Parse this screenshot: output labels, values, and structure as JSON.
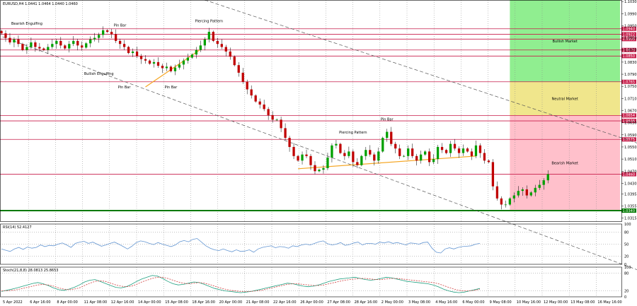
{
  "colors": {
    "up": "#00a000",
    "down": "#c00000",
    "wick": "#000000",
    "hline": "#c81e4b",
    "support": "#007a00",
    "trend": "#555555",
    "orange": "#f5a623",
    "rsi": "#6496d2",
    "stoch_main": "#20a080",
    "stoch_signal": "#d04040",
    "bull": "#90ee90",
    "neutral": "#f0e68c",
    "bear": "#ffc0cb"
  },
  "main_panel": {
    "info": "EURUSD,H4  1.0441 1.0464 1.0440 1.0460",
    "ylim": [
      1.0305,
      1.1035
    ],
    "yticks": [
      "1.1030",
      "1.0990",
      "1.0950",
      "1.0910",
      "1.0870",
      "1.0830",
      "1.0790",
      "1.0750",
      "1.0710",
      "1.0670",
      "1.0630",
      "1.0590",
      "1.0550",
      "1.0510",
      "1.0470",
      "1.0430",
      "1.0395",
      "1.0355",
      "1.0315"
    ],
    "hlines": [
      {
        "price": 1.094,
        "label": "1.0940"
      },
      {
        "price": 1.0922,
        "label": "1.0922"
      },
      {
        "price": 1.0906,
        "label": "1.0906"
      },
      {
        "price": 1.087,
        "label": "1.0870"
      },
      {
        "price": 1.085,
        "label": "1.0850"
      },
      {
        "price": 1.0765,
        "label": "1.0765"
      },
      {
        "price": 1.0654,
        "label": "1.0654"
      },
      {
        "price": 1.0636,
        "label": "1.0636"
      },
      {
        "price": 1.0575,
        "label": "1.0575"
      },
      {
        "price": 1.046,
        "label": "1.0460"
      },
      {
        "price": 1.034,
        "label": "1.0340",
        "support": true
      }
    ],
    "zones": [
      {
        "name": "Bullish Market",
        "from": 1.0765,
        "to": 1.1035,
        "color": "#90ee90"
      },
      {
        "name": "Neutral Market",
        "from": 1.0654,
        "to": 1.0765,
        "color": "#f0e68c"
      },
      {
        "name": "Bearish Market",
        "from": 1.034,
        "to": 1.0654,
        "color": "#ffc0cb"
      }
    ],
    "annotations": [
      {
        "text": "Bearish Engulfing",
        "x": 6,
        "y": 1.0953
      },
      {
        "text": "Pin Bar",
        "x": 28,
        "y": 1.0948
      },
      {
        "text": "Piercing Pattern",
        "x": 49,
        "y": 1.0962
      },
      {
        "text": "Bullish Engulfing",
        "x": 23,
        "y": 1.0788
      },
      {
        "text": "Pin Bar",
        "x": 29,
        "y": 1.0744
      },
      {
        "text": "Pin Bar",
        "x": 40,
        "y": 1.0744
      },
      {
        "text": "Piercing Pattern",
        "x": 83,
        "y": 1.0594
      },
      {
        "text": "Pin Bar",
        "x": 91,
        "y": 1.0637
      }
    ],
    "zone_col": [
      120,
      146
    ]
  },
  "chart_data": [
    {
      "type": "candlestick",
      "symbol": "EURUSD",
      "timeframe": "H4",
      "ohlc_last": {
        "open": 1.0441,
        "high": 1.0464,
        "low": 1.044,
        "close": 1.046
      },
      "x_labels": [
        "5 Apr 2022",
        "6 Apr 16:00",
        "8 Apr 00:00",
        "11 Apr 08:00",
        "12 Apr 16:00",
        "14 Apr 00:00",
        "15 Apr 08:00",
        "18 Apr 16:00",
        "20 Apr 00:00",
        "21 Apr 08:00",
        "22 Apr 16:00",
        "26 Apr 00:00",
        "27 Apr 08:00",
        "28 Apr 16:00",
        "2 May 00:00",
        "3 May 08:00",
        "4 May 16:00",
        "6 May 00:00",
        "9 May 08:00",
        "10 May 16:00",
        "12 May 00:00",
        "13 May 08:00",
        "16 May 16:00"
      ],
      "close": [
        1.0925,
        1.091,
        1.0895,
        1.0905,
        1.089,
        1.087,
        1.088,
        1.0895,
        1.088,
        1.0875,
        1.087,
        1.088,
        1.089,
        1.09,
        1.0885,
        1.0875,
        1.089,
        1.09,
        1.0885,
        1.0878,
        1.0892,
        1.0905,
        1.091,
        1.092,
        1.0935,
        1.093,
        1.0922,
        1.09,
        1.089,
        1.088,
        1.086,
        1.0865,
        1.085,
        1.084,
        1.0835,
        1.0825,
        1.083,
        1.0818,
        1.081,
        1.0815,
        1.08,
        1.0812,
        1.0822,
        1.0835,
        1.0845,
        1.0855,
        1.087,
        1.0885,
        1.0905,
        1.093,
        1.09,
        1.089,
        1.088,
        1.0865,
        1.0848,
        1.082,
        1.0795,
        1.0765,
        1.074,
        1.072,
        1.07,
        1.069,
        1.0675,
        1.0655,
        1.064,
        1.064,
        1.0612,
        1.058,
        1.055,
        1.052,
        1.0505,
        1.0525,
        1.052,
        1.049,
        1.047,
        1.0475,
        1.048,
        1.0515,
        1.0555,
        1.056,
        1.053,
        1.052,
        1.0535,
        1.05,
        1.049,
        1.052,
        1.054,
        1.0525,
        1.0505,
        1.0535,
        1.058,
        1.06,
        1.056,
        1.0545,
        1.052,
        1.052,
        1.0545,
        1.052,
        1.0505,
        1.0525,
        1.0535,
        1.05,
        1.051,
        1.055,
        1.054,
        1.053,
        1.056,
        1.0545,
        1.053,
        1.0545,
        1.0535,
        1.052,
        1.0555,
        1.053,
        1.0505,
        1.05,
        1.042,
        1.038,
        1.036,
        1.036,
        1.038,
        1.039,
        1.0405,
        1.041,
        1.039,
        1.04,
        1.0415,
        1.0425,
        1.044,
        1.046
      ]
    },
    {
      "type": "line",
      "title": "RSI(14) 52.4127",
      "ylim": [
        0,
        100
      ],
      "yticks": [
        100,
        80,
        50,
        20,
        0
      ],
      "series": [
        {
          "values": [
            38,
            35,
            32,
            38,
            42,
            37,
            43,
            40,
            42,
            48,
            44,
            47,
            46,
            50,
            53,
            48,
            42,
            52,
            55,
            57,
            52,
            55,
            50,
            45,
            48,
            52,
            55,
            50,
            44,
            38,
            45,
            54,
            58,
            56,
            52,
            49,
            54,
            50,
            47,
            44,
            48,
            56,
            59,
            56,
            62,
            64,
            55,
            46,
            40,
            36,
            34,
            38,
            34,
            31,
            36,
            32,
            33,
            36,
            30,
            38,
            42,
            44,
            46,
            41,
            44,
            43,
            40,
            46,
            44,
            48,
            50,
            48,
            52,
            56,
            58,
            51,
            48,
            50,
            54,
            47,
            49,
            53,
            55,
            48,
            52,
            52,
            50,
            55,
            53,
            56,
            52,
            54,
            51,
            48,
            53,
            52,
            50,
            54,
            55,
            40,
            30,
            28,
            38,
            41,
            38,
            42,
            44,
            45,
            46,
            50,
            52
          ]
        }
      ]
    },
    {
      "type": "line",
      "title": "Stoch(21,8,8) 28.0813 25.8653",
      "ylim": [
        0,
        100
      ],
      "yticks": [
        100,
        80,
        20,
        0
      ],
      "series": [
        {
          "values": [
            18,
            22,
            26,
            30,
            35,
            40,
            45,
            48,
            44,
            38,
            30,
            24,
            22,
            26,
            32,
            40,
            50,
            56,
            58,
            52,
            45,
            38,
            32,
            30,
            34,
            42,
            52,
            60,
            66,
            72,
            70,
            62,
            52,
            44,
            40,
            42,
            46,
            50,
            48,
            42,
            35,
            28,
            24,
            20,
            18,
            16,
            14,
            16,
            18,
            22,
            26,
            30,
            34,
            38,
            42,
            46,
            44,
            40,
            36,
            34,
            36,
            40,
            46,
            52,
            56,
            60,
            62,
            64,
            66,
            62,
            58,
            56,
            58,
            62,
            66,
            64,
            60,
            56,
            52,
            50,
            48,
            46,
            44,
            40,
            34,
            26,
            20,
            16,
            14,
            16,
            20,
            24,
            28
          ]
        },
        {
          "values": [
            20,
            20,
            22,
            24,
            28,
            32,
            36,
            40,
            42,
            40,
            36,
            30,
            26,
            24,
            26,
            30,
            38,
            46,
            52,
            54,
            52,
            46,
            40,
            36,
            34,
            36,
            42,
            50,
            56,
            62,
            66,
            66,
            62,
            56,
            50,
            46,
            44,
            46,
            48,
            46,
            42,
            36,
            30,
            26,
            22,
            20,
            18,
            18,
            18,
            20,
            22,
            26,
            30,
            34,
            38,
            42,
            44,
            44,
            42,
            40,
            38,
            38,
            40,
            44,
            48,
            52,
            56,
            58,
            60,
            62,
            62,
            60,
            58,
            58,
            60,
            62,
            62,
            60,
            58,
            56,
            54,
            52,
            50,
            48,
            44,
            38,
            32,
            26,
            22,
            20,
            20,
            22,
            26
          ]
        }
      ]
    }
  ]
}
